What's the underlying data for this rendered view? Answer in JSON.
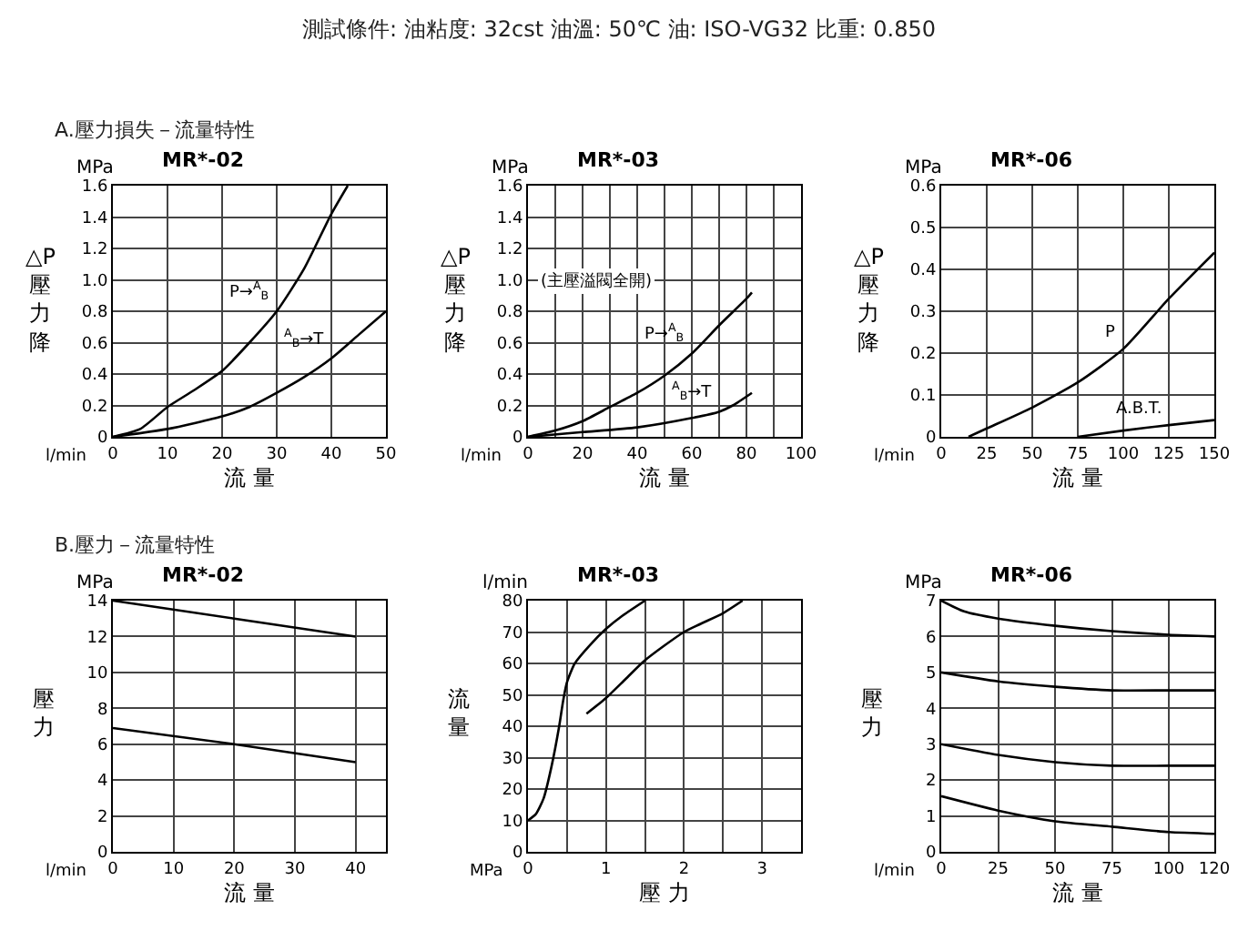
{
  "chart_data": [
    {
      "type": "line",
      "title": "MR*-02",
      "subtitle": "A.壓力損失－流量特性",
      "xlabel": "流 量",
      "ylabel": "△P 壓力降",
      "grid": true,
      "legend": false,
      "xlim": [
        0,
        50
      ],
      "xticks": [
        0,
        10,
        20,
        30,
        40,
        50
      ],
      "ylim": [
        0,
        1.6
      ],
      "yticks": [
        0,
        0.2,
        0.4,
        0.6,
        0.8,
        {
          "value": 1,
          "label": "1.0"
        },
        1.2,
        1.4,
        1.6
      ],
      "series": [
        {
          "name": "P→$^{A}$$_{B}$",
          "color": "#000000",
          "x": [
            0,
            5,
            10,
            15,
            20,
            25,
            30,
            35,
            40,
            43
          ],
          "values": [
            0,
            0.05,
            0.19,
            0.3,
            0.42,
            0.6,
            0.8,
            1.07,
            1.42,
            1.6
          ]
        },
        {
          "name": "$^{A}$$_{B}$→T",
          "color": "#000000",
          "x": [
            0,
            10,
            20,
            25,
            30,
            35,
            40,
            45,
            50
          ],
          "values": [
            0,
            0.05,
            0.13,
            0.19,
            0.28,
            0.38,
            0.5,
            0.65,
            0.8
          ]
        }
      ],
      "annotations": [
        "MPa",
        "l/min",
        "測試條件: 油粘度: 32cst  油溫: 50℃  油: ISO-VG32  比重: 0.850"
      ]
    },
    {
      "type": "line",
      "title": "MR*-03",
      "xlabel": "流 量",
      "ylabel": "△P 壓力降",
      "grid": true,
      "legend": false,
      "xlim": [
        0,
        100
      ],
      "xticks": [
        0,
        {
          "value": 10,
          "label": null
        },
        20,
        {
          "value": 30,
          "label": null
        },
        40,
        {
          "value": 50,
          "label": null
        },
        60,
        {
          "value": 70,
          "label": null
        },
        80,
        {
          "value": 90,
          "label": null
        },
        100
      ],
      "ylim": [
        0,
        1.6
      ],
      "yticks": [
        0,
        0.2,
        0.4,
        0.6,
        0.8,
        {
          "value": 1,
          "label": "1.0"
        },
        1.2,
        1.4,
        1.6
      ],
      "series": [
        {
          "name": "P→$^{A}$$_{B}$",
          "color": "#000000",
          "x": [
            0,
            10,
            20,
            30,
            40,
            50,
            60,
            70,
            80,
            82
          ],
          "values": [
            0,
            0.04,
            0.1,
            0.19,
            0.28,
            0.39,
            0.53,
            0.71,
            0.88,
            0.92
          ]
        },
        {
          "name": "$^{A}$$_{B}$→T",
          "color": "#000000",
          "x": [
            0,
            20,
            40,
            60,
            70,
            75,
            82
          ],
          "values": [
            0,
            0.03,
            0.06,
            0.12,
            0.16,
            0.2,
            0.28
          ]
        }
      ],
      "annotations": [
        "MPa",
        "l/min",
        "(主壓溢閥全開)"
      ]
    },
    {
      "type": "line",
      "title": "MR*-06",
      "xlabel": "流 量",
      "ylabel": "△P 壓力降",
      "grid": true,
      "legend": false,
      "xlim": [
        0,
        150
      ],
      "xticks": [
        0,
        25,
        50,
        75,
        100,
        125,
        150
      ],
      "ylim": [
        0,
        0.6
      ],
      "yticks": [
        0,
        0.1,
        0.2,
        0.3,
        0.4,
        0.5,
        0.6
      ],
      "series": [
        {
          "name": "P",
          "color": "#000000",
          "x": [
            15,
            25,
            50,
            75,
            100,
            125,
            150
          ],
          "values": [
            0,
            0.02,
            0.07,
            0.13,
            0.21,
            0.33,
            0.44
          ]
        },
        {
          "name": "A.B.T.",
          "color": "#000000",
          "x": [
            75,
            100,
            125,
            150
          ],
          "values": [
            0,
            0.015,
            0.028,
            0.04
          ]
        }
      ],
      "annotations": [
        "MPa",
        "l/min"
      ]
    },
    {
      "type": "line",
      "title": "MR*-02",
      "subtitle": "B.壓力－流量特性",
      "xlabel": "流 量",
      "grid": true,
      "legend": false,
      "ylabel": "壓力",
      "xlim": [
        0,
        45
      ],
      "xticks": [
        0,
        10,
        20,
        30,
        40
      ],
      "ylim": [
        0,
        14
      ],
      "yticks": [
        0,
        2,
        4,
        6,
        8,
        10,
        12,
        14
      ],
      "series": [
        {
          "color": "#000000",
          "x": [
            0,
            20,
            40
          ],
          "values": [
            14,
            13,
            12
          ]
        },
        {
          "color": "#000000",
          "x": [
            0,
            20,
            40
          ],
          "values": [
            6.9,
            6,
            5
          ]
        }
      ],
      "annotations": [
        "MPa",
        "l/min"
      ]
    },
    {
      "type": "line",
      "title": "MR*-03",
      "xlabel": "壓 力",
      "ylabel": "流量",
      "grid": true,
      "legend": false,
      "xlim": [
        0,
        3.5
      ],
      "xticks": [
        0,
        {
          "value": 0.5,
          "label": null
        },
        1,
        {
          "value": 1.5,
          "label": null
        },
        2,
        {
          "value": 2.5,
          "label": null
        },
        3
      ],
      "ylim": [
        0,
        80
      ],
      "yticks": [
        0,
        10,
        20,
        30,
        40,
        50,
        60,
        70,
        80
      ],
      "series": [
        {
          "color": "#000000",
          "x": [
            0,
            0.1,
            0.2,
            0.3,
            0.4,
            0.45,
            0.5,
            0.6,
            0.8,
            1,
            1.2,
            1.5
          ],
          "values": [
            10,
            12,
            17,
            27,
            40,
            48,
            54,
            60,
            66,
            71,
            75,
            80
          ]
        },
        {
          "color": "#000000",
          "x": [
            0.75,
            1,
            1.25,
            1.5,
            2,
            2.5,
            2.75
          ],
          "values": [
            44,
            49,
            55,
            61,
            70,
            76,
            80
          ]
        }
      ],
      "annotations": [
        "l/min",
        "MPa"
      ]
    },
    {
      "type": "line",
      "title": "MR*-06",
      "xlabel": "流 量",
      "ylabel": "壓力",
      "grid": true,
      "legend": false,
      "xlim": [
        0,
        120
      ],
      "xticks": [
        0,
        25,
        50,
        75,
        100,
        120
      ],
      "ylim": [
        0,
        7
      ],
      "yticks": [
        0,
        1,
        2,
        3,
        4,
        5,
        6,
        7
      ],
      "series": [
        {
          "color": "#000000",
          "x": [
            0,
            10,
            25,
            50,
            75,
            100,
            120
          ],
          "values": [
            7,
            6.7,
            6.5,
            6.3,
            6.15,
            6.05,
            6
          ]
        },
        {
          "color": "#000000",
          "x": [
            0,
            25,
            50,
            75,
            100,
            120
          ],
          "values": [
            5,
            4.75,
            4.6,
            4.5,
            4.5,
            4.5
          ]
        },
        {
          "color": "#000000",
          "x": [
            0,
            25,
            50,
            75,
            100,
            120
          ],
          "values": [
            3,
            2.7,
            2.5,
            2.4,
            2.4,
            2.4
          ]
        },
        {
          "color": "#000000",
          "x": [
            0,
            25,
            50,
            75,
            100,
            120
          ],
          "values": [
            1.55,
            1.15,
            0.85,
            0.7,
            0.55,
            0.5
          ]
        }
      ],
      "annotations": [
        "MPa",
        "l/min"
      ]
    }
  ]
}
